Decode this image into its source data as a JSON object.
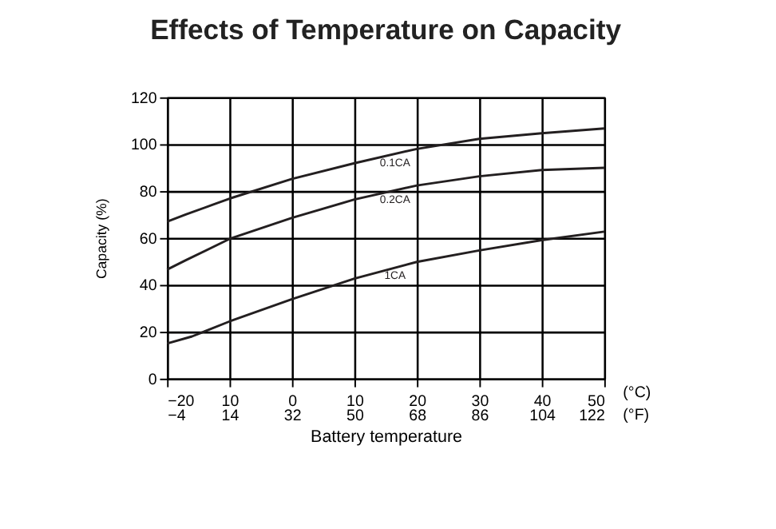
{
  "chart_data": {
    "type": "line",
    "title": "Effects of Temperature on Capacity",
    "xlabel": "Battery temperature",
    "ylabel": "Capacity (%)",
    "xlim": [
      -20,
      50
    ],
    "xticks": [
      -20,
      {
        "value": -10,
        "label": "10"
      },
      0,
      10,
      20,
      30,
      40,
      50
    ],
    "x2lim": [
      -4,
      122
    ],
    "x2ticks": [
      -4,
      14,
      32,
      50,
      68,
      86,
      104,
      122
    ],
    "ylim": [
      0,
      120
    ],
    "yticks": [
      0,
      20,
      40,
      60,
      80,
      100,
      120
    ],
    "grid": true,
    "legend": false,
    "line_style": "solid",
    "marker": "none",
    "annotations": [
      "(°C)",
      "(°F)"
    ],
    "series": [
      {
        "name": "0.1CA",
        "color": "#231f20",
        "x": [
          -20,
          -17,
          -10,
          0,
          10,
          20,
          30,
          40,
          50
        ],
        "values": [
          67,
          70,
          76.8,
          85.2,
          91.9,
          98,
          102.3,
          104.7,
          106.7
        ]
      },
      {
        "name": "0.2CA",
        "color": "#231f20",
        "x": [
          -20,
          -17,
          -10,
          0,
          10,
          20,
          30,
          40,
          50
        ],
        "values": [
          46.5,
          50.5,
          59.6,
          68.6,
          76.4,
          82.4,
          86.3,
          89,
          89.9
        ]
      },
      {
        "name": "1CA",
        "color": "#231f20",
        "x": [
          -20,
          -16,
          -10,
          0,
          10,
          20,
          30,
          40,
          50
        ],
        "values": [
          15,
          18,
          24.4,
          33.9,
          42.7,
          49.8,
          54.7,
          59.1,
          62.7
        ]
      }
    ]
  }
}
